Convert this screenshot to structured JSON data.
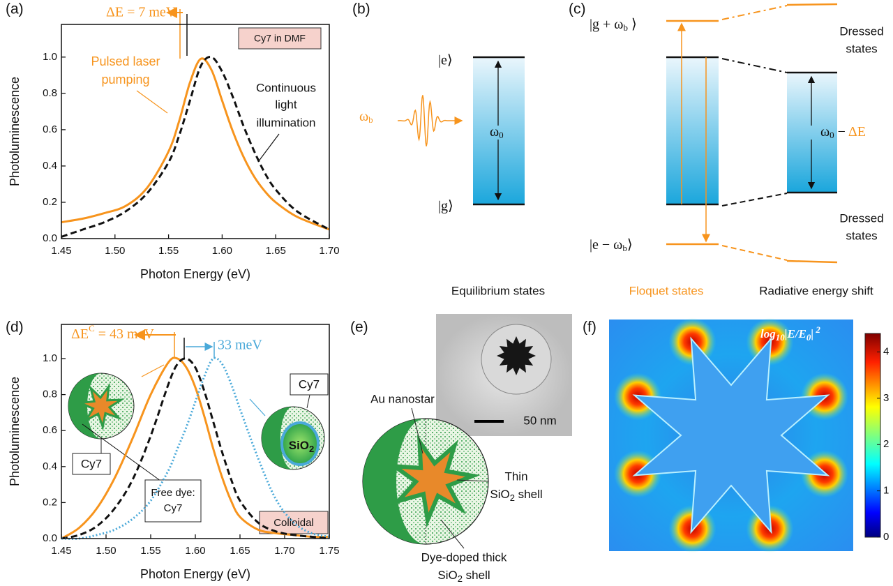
{
  "chart_data": [
    {
      "type": "line",
      "panel": "(a)",
      "ylabel": "Photoluminescence",
      "xlabel": "Photon Energy (eV)",
      "x": [
        1.45,
        1.47,
        1.49,
        1.51,
        1.53,
        1.55,
        1.56,
        1.57,
        1.58,
        1.59,
        1.6,
        1.61,
        1.62,
        1.63,
        1.64,
        1.65,
        1.67,
        1.7
      ],
      "series": [
        {
          "name": "Pulsed laser pumping",
          "color": "#f7941d",
          "line_style": "solid",
          "values": [
            0.09,
            0.11,
            0.14,
            0.18,
            0.28,
            0.48,
            0.65,
            0.86,
            0.99,
            0.93,
            0.76,
            0.59,
            0.45,
            0.34,
            0.26,
            0.2,
            0.12,
            0.05
          ]
        },
        {
          "name": "Continuous light illumination",
          "color": "#111111",
          "line_style": "dashed",
          "values": [
            0.01,
            0.05,
            0.09,
            0.15,
            0.25,
            0.42,
            0.57,
            0.76,
            0.95,
            1.0,
            0.92,
            0.78,
            0.62,
            0.48,
            0.36,
            0.27,
            0.15,
            0.05
          ]
        }
      ],
      "xlim": [
        1.45,
        1.7
      ],
      "ylim": [
        0,
        1.18
      ],
      "xticks": [
        1.45,
        {
          "value": 1.5,
          "label": "1.50"
        },
        1.55,
        {
          "value": 1.6,
          "label": "1.60"
        },
        1.65,
        {
          "value": 1.7,
          "label": "1.70"
        }
      ],
      "yticks": [
        {
          "value": 0,
          "label": "0.0"
        },
        0.2,
        0.4,
        0.6,
        0.8,
        {
          "value": 1,
          "label": "1.0"
        }
      ],
      "annotations": {
        "shift": "ΔE = 7 meV",
        "sample": "Cy7 in DMF",
        "pulsed": [
          "Pulsed laser",
          "pumping"
        ],
        "continuous": [
          "Continuous",
          "light",
          "illumination"
        ]
      }
    },
    {
      "type": "line",
      "panel": "(d)",
      "ylabel": "Photoluminescence",
      "xlabel": "Photon Energy (eV)",
      "x": [
        1.45,
        1.47,
        1.49,
        1.51,
        1.53,
        1.55,
        1.57,
        1.58,
        1.59,
        1.6,
        1.61,
        1.62,
        1.63,
        1.64,
        1.65,
        1.67,
        1.69,
        1.71,
        1.73,
        1.75
      ],
      "series": [
        {
          "name": "Nanostar-coupled Cy7",
          "color": "#f7941d",
          "line_style": "solid",
          "values": [
            0.0,
            0.06,
            0.17,
            0.34,
            0.56,
            0.8,
            0.98,
            1.0,
            0.95,
            0.84,
            0.68,
            0.5,
            0.34,
            0.21,
            0.12,
            0.05,
            0.03,
            0.02,
            0.01,
            0.01
          ]
        },
        {
          "name": "Free dye",
          "color": "#111111",
          "line_style": "dashed",
          "values": [
            0.0,
            0.02,
            0.07,
            0.17,
            0.33,
            0.57,
            0.86,
            0.97,
            1.0,
            0.95,
            0.82,
            0.65,
            0.48,
            0.33,
            0.21,
            0.09,
            0.04,
            0.02,
            0.01,
            0.0
          ]
        },
        {
          "name": "SiO2 core Cy7",
          "color": "#4aa9d9",
          "line_style": "dotted",
          "values": [
            0.0,
            0.0,
            0.02,
            0.05,
            0.11,
            0.21,
            0.38,
            0.5,
            0.62,
            0.76,
            0.9,
            1.0,
            0.97,
            0.86,
            0.72,
            0.45,
            0.22,
            0.09,
            0.03,
            0.01
          ]
        }
      ],
      "xlim": [
        1.45,
        1.75
      ],
      "ylim": [
        0,
        1.19
      ],
      "xticks": [
        1.45,
        {
          "value": 1.5,
          "label": "1.50"
        },
        1.55,
        {
          "value": 1.6,
          "label": "1.60"
        },
        1.65,
        {
          "value": 1.7,
          "label": "1.70"
        },
        1.75
      ],
      "yticks": [
        {
          "value": 0,
          "label": "0.0"
        },
        0.2,
        0.4,
        0.6,
        0.8,
        {
          "value": 1,
          "label": "1.0"
        }
      ],
      "annotations": {
        "shift": [
          "ΔE",
          "C",
          " = 43 meV"
        ],
        "blue_shift": "33 meV",
        "cy7_left": "Cy7",
        "cy7_right": "Cy7",
        "sio2": [
          "SiO",
          "2"
        ],
        "free_dye": [
          "Free dye:",
          "Cy7"
        ],
        "colloidal": "Colloidal"
      }
    }
  ],
  "panel_b": {
    "label": "(b)",
    "excited": "|e⟩",
    "ground": "|g⟩",
    "drive": [
      "ω",
      "b"
    ],
    "gap": [
      "ω",
      "0"
    ],
    "caption": "Equilibrium states"
  },
  "panel_c": {
    "label": "(c)",
    "upper": [
      "|g + ω",
      "b",
      " ⟩"
    ],
    "lower": [
      "|e − ω",
      "b",
      "⟩"
    ],
    "dressed_top": [
      "Dressed",
      "states"
    ],
    "dressed_bottom": [
      "Dressed",
      "states"
    ],
    "gap": [
      "ω",
      "0",
      " − ",
      "ΔE"
    ],
    "caption_floquet": "Floquet states",
    "caption_shift": "Radiative energy shift"
  },
  "panel_e": {
    "label": "(e)",
    "core": "Au nanostar",
    "scale": "50 nm",
    "thin_shell": [
      "Thin",
      [
        "SiO",
        "2",
        " shell"
      ]
    ],
    "thick_shell": [
      "Dye-doped thick",
      [
        "SiO",
        "2",
        " shell"
      ]
    ]
  },
  "panel_f": {
    "label": "(f)",
    "quantity": [
      "log",
      "10",
      "|",
      "E/E",
      "0",
      "|",
      " 2"
    ],
    "colorbar": {
      "lim": [
        0,
        4.4
      ],
      "ticks": [
        0,
        1,
        2,
        3,
        4
      ]
    }
  }
}
